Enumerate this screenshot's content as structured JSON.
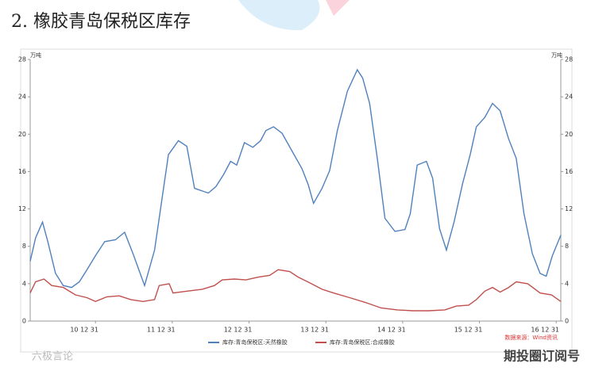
{
  "title": "2. 橡胶青岛保税区库存",
  "chart_data": {
    "type": "line",
    "y_label": "万吨",
    "y2_label": "万吨",
    "xlim": [
      2010.15,
      2017.06
    ],
    "xticks": [
      {
        "value": 2011.0,
        "label": "10 12 31"
      },
      {
        "value": 2012.0,
        "label": "11 12 31"
      },
      {
        "value": 2013.0,
        "label": "12 12 31"
      },
      {
        "value": 2014.0,
        "label": "13 12 31"
      },
      {
        "value": 2015.0,
        "label": "14 12 31"
      },
      {
        "value": 2016.0,
        "label": "15 12 31"
      },
      {
        "value": 2017.0,
        "label": "16 12 31"
      }
    ],
    "ylim": [
      0,
      28
    ],
    "yticks": [
      0,
      4,
      8,
      12,
      16,
      20,
      24,
      28
    ],
    "y2lim": [
      0,
      28
    ],
    "y2ticks": [
      0,
      4,
      8,
      12,
      16,
      20,
      24,
      28
    ],
    "series": [
      {
        "name": "库存:青岛保税区:天然橡胶",
        "color": "#4f81bd",
        "x": [
          2010.15,
          2010.22,
          2010.31,
          2010.38,
          2010.48,
          2010.58,
          2010.69,
          2010.79,
          2010.89,
          2011.0,
          2011.12,
          2011.26,
          2011.38,
          2011.49,
          2011.64,
          2011.77,
          2011.86,
          2011.95,
          2012.08,
          2012.19,
          2012.29,
          2012.47,
          2012.57,
          2012.67,
          2012.76,
          2012.84,
          2012.94,
          2013.05,
          2013.15,
          2013.22,
          2013.32,
          2013.43,
          2013.56,
          2013.69,
          2013.77,
          2013.84,
          2013.95,
          2014.05,
          2014.15,
          2014.28,
          2014.41,
          2014.48,
          2014.57,
          2014.67,
          2014.77,
          2014.9,
          2015.03,
          2015.1,
          2015.19,
          2015.31,
          2015.39,
          2015.48,
          2015.57,
          2015.67,
          2015.78,
          2015.88,
          2015.96,
          2016.07,
          2016.17,
          2016.27,
          2016.38,
          2016.48,
          2016.58,
          2016.69,
          2016.79,
          2016.87,
          2016.95,
          2017.06
        ],
        "values": [
          6.4,
          8.9,
          10.6,
          8.5,
          5.1,
          3.8,
          3.6,
          4.2,
          5.5,
          7.0,
          8.5,
          8.7,
          9.5,
          7.2,
          3.8,
          7.6,
          12.7,
          17.8,
          19.3,
          18.7,
          14.2,
          13.7,
          14.4,
          15.7,
          17.1,
          16.7,
          19.1,
          18.6,
          19.3,
          20.4,
          20.8,
          20.1,
          18.2,
          16.3,
          14.6,
          12.6,
          14.2,
          16.1,
          20.4,
          24.6,
          26.9,
          26.0,
          23.3,
          17.4,
          11.0,
          9.6,
          9.8,
          11.5,
          16.7,
          17.1,
          15.3,
          9.9,
          7.6,
          10.6,
          14.7,
          17.8,
          20.8,
          21.8,
          23.3,
          22.5,
          19.5,
          17.4,
          11.5,
          7.2,
          5.1,
          4.8,
          7.0,
          9.2
        ]
      },
      {
        "name": "库存:青岛保税区:合成橡胶",
        "color": "#c0504d",
        "x": [
          2010.15,
          2010.22,
          2010.33,
          2010.43,
          2010.58,
          2010.74,
          2010.89,
          2011.0,
          2011.15,
          2011.31,
          2011.46,
          2011.62,
          2011.77,
          2011.83,
          2011.96,
          2012.01,
          2012.19,
          2012.39,
          2012.55,
          2012.65,
          2012.81,
          2012.96,
          2013.12,
          2013.27,
          2013.38,
          2013.53,
          2013.64,
          2013.79,
          2013.95,
          2014.1,
          2014.31,
          2014.51,
          2014.72,
          2014.93,
          2015.13,
          2015.34,
          2015.55,
          2015.7,
          2015.86,
          2015.96,
          2016.07,
          2016.17,
          2016.27,
          2016.38,
          2016.48,
          2016.63,
          2016.79,
          2016.94,
          2017.06
        ],
        "values": [
          3.0,
          4.2,
          4.5,
          3.8,
          3.6,
          2.8,
          2.5,
          2.1,
          2.6,
          2.7,
          2.3,
          2.1,
          2.3,
          3.8,
          4.0,
          3.0,
          3.2,
          3.4,
          3.8,
          4.4,
          4.5,
          4.4,
          4.7,
          4.9,
          5.5,
          5.3,
          4.7,
          4.1,
          3.4,
          3.0,
          2.5,
          2.0,
          1.4,
          1.2,
          1.1,
          1.1,
          1.2,
          1.6,
          1.7,
          2.3,
          3.2,
          3.6,
          3.1,
          3.6,
          4.2,
          4.0,
          3.0,
          2.8,
          2.1
        ]
      }
    ],
    "source": "数据来源：Wind资讯"
  },
  "watermarks": [
    "六极言论",
    "期投圈订阅号"
  ]
}
